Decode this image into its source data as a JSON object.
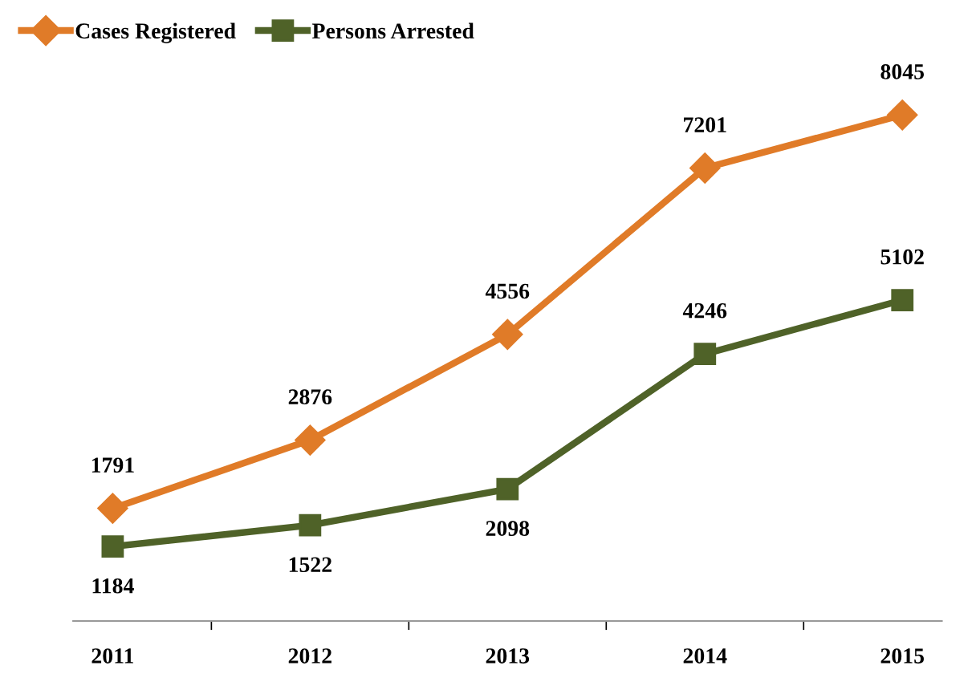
{
  "chart_data": {
    "type": "line",
    "categories": [
      "2011",
      "2012",
      "2013",
      "2014",
      "2015"
    ],
    "series": [
      {
        "name": "Cases Registered",
        "color": "#e07b28",
        "marker": "diamond",
        "values": [
          1791,
          2876,
          4556,
          7201,
          8045
        ]
      },
      {
        "name": "Persons Arrested",
        "color": "#4f6228",
        "marker": "square",
        "values": [
          1184,
          1522,
          2098,
          4246,
          5102
        ]
      }
    ],
    "data_labels": true,
    "legend": "top left",
    "grid": false,
    "line_style": "solid"
  }
}
